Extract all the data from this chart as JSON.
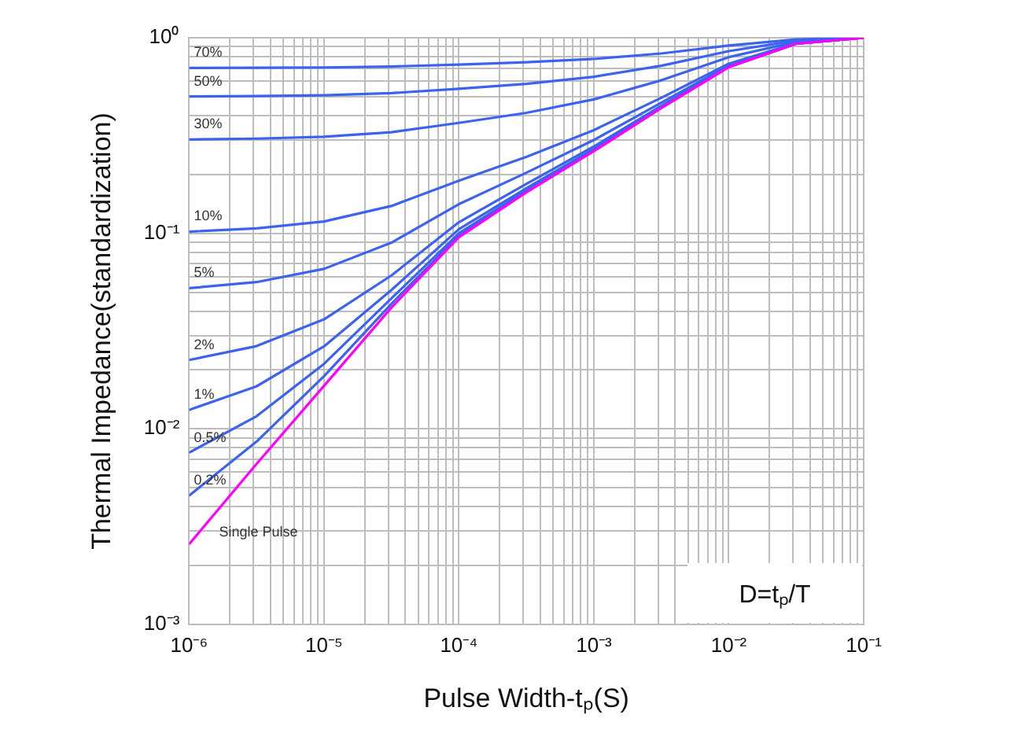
{
  "chart_data": {
    "type": "line",
    "xlabel": "Pulse Width-tₚ(S)",
    "ylabel": "Thermal Impedance(standardization)",
    "log": "xy",
    "grid": true,
    "legend": false,
    "marker": "none",
    "line_style": "solid",
    "x": [
      1e-06,
      3.16e-06,
      1e-05,
      3.16e-05,
      0.0001,
      0.000316,
      0.001,
      0.00316,
      0.01,
      0.0316,
      0.1
    ],
    "series": [
      {
        "name": "70%",
        "color": "#3b63f0",
        "values": [
          0.701,
          0.702,
          0.705,
          0.713,
          0.729,
          0.749,
          0.779,
          0.831,
          0.912,
          0.98,
          1
        ]
      },
      {
        "name": "50%",
        "color": "#3b63f0",
        "values": [
          0.501,
          0.503,
          0.508,
          0.521,
          0.548,
          0.581,
          0.632,
          0.719,
          0.854,
          0.967,
          1
        ]
      },
      {
        "name": "30%",
        "color": "#3b63f0",
        "values": [
          0.302,
          0.305,
          0.312,
          0.329,
          0.367,
          0.413,
          0.484,
          0.606,
          0.796,
          0.953,
          1
        ]
      },
      {
        "name": "10%",
        "color": "#3b63f0",
        "values": [
          0.102,
          0.106,
          0.115,
          0.138,
          0.186,
          0.246,
          0.337,
          0.493,
          0.737,
          0.94,
          1
        ]
      },
      {
        "name": "5%",
        "color": "#3b63f0",
        "values": [
          0.0524,
          0.0563,
          0.0658,
          0.0896,
          0.141,
          0.204,
          0.3,
          0.465,
          0.723,
          0.936,
          1
        ]
      },
      {
        "name": "2%",
        "color": "#3b63f0",
        "values": [
          0.0225,
          0.0265,
          0.0363,
          0.0609,
          0.114,
          0.179,
          0.278,
          0.448,
          0.714,
          0.934,
          1
        ]
      },
      {
        "name": "1%",
        "color": "#3b63f0",
        "values": [
          0.0125,
          0.0165,
          0.0264,
          0.0513,
          0.105,
          0.17,
          0.27,
          0.443,
          0.711,
          0.933,
          1
        ]
      },
      {
        "name": "0.5%",
        "color": "#3b63f0",
        "values": [
          0.00756,
          0.0116,
          0.0215,
          0.0465,
          0.1,
          0.166,
          0.267,
          0.44,
          0.709,
          0.933,
          1
        ]
      },
      {
        "name": "0.2%",
        "color": "#3b63f0",
        "values": [
          0.00456,
          0.0086,
          0.0186,
          0.0436,
          0.0973,
          0.164,
          0.264,
          0.438,
          0.709,
          0.933,
          1
        ]
      },
      {
        "name": "Single Pulse",
        "color": "#ff00ff",
        "values": [
          0.00257,
          0.00661,
          0.0166,
          0.0417,
          0.0955,
          0.162,
          0.263,
          0.437,
          0.708,
          0.933,
          1
        ]
      }
    ],
    "xlim": [
      1e-06,
      0.1
    ],
    "ylim": [
      0.001,
      1
    ],
    "xticks": [
      {
        "value": 1e-06,
        "label": "10⁻⁶"
      },
      {
        "value": 2e-06,
        "label": null
      },
      {
        "value": 3e-06,
        "label": null
      },
      {
        "value": 4e-06,
        "label": null
      },
      {
        "value": 5e-06,
        "label": null
      },
      {
        "value": 6e-06,
        "label": null
      },
      {
        "value": 7e-06,
        "label": null
      },
      {
        "value": 8e-06,
        "label": null
      },
      {
        "value": 9e-06,
        "label": null
      },
      {
        "value": 1e-05,
        "label": "10⁻⁵"
      },
      {
        "value": 2e-05,
        "label": null
      },
      {
        "value": 3e-05,
        "label": null
      },
      {
        "value": 4e-05,
        "label": null
      },
      {
        "value": 5e-05,
        "label": null
      },
      {
        "value": 6e-05,
        "label": null
      },
      {
        "value": 7e-05,
        "label": null
      },
      {
        "value": 8e-05,
        "label": null
      },
      {
        "value": 9e-05,
        "label": null
      },
      {
        "value": 0.0001,
        "label": "10⁻⁴"
      },
      {
        "value": 0.0002,
        "label": null
      },
      {
        "value": 0.0003,
        "label": null
      },
      {
        "value": 0.0004,
        "label": null
      },
      {
        "value": 0.0005,
        "label": null
      },
      {
        "value": 0.0006,
        "label": null
      },
      {
        "value": 0.0007,
        "label": null
      },
      {
        "value": 0.0008,
        "label": null
      },
      {
        "value": 0.0009,
        "label": null
      },
      {
        "value": 0.001,
        "label": "10⁻³"
      },
      {
        "value": 0.002,
        "label": null
      },
      {
        "value": 0.003,
        "label": null
      },
      {
        "value": 0.004,
        "label": null
      },
      {
        "value": 0.005,
        "label": null
      },
      {
        "value": 0.006,
        "label": null
      },
      {
        "value": 0.007,
        "label": null
      },
      {
        "value": 0.008,
        "label": null
      },
      {
        "value": 0.009,
        "label": null
      },
      {
        "value": 0.01,
        "label": "10⁻²"
      },
      {
        "value": 0.02,
        "label": null
      },
      {
        "value": 0.03,
        "label": null
      },
      {
        "value": 0.04,
        "label": null
      },
      {
        "value": 0.05,
        "label": null
      },
      {
        "value": 0.06,
        "label": null
      },
      {
        "value": 0.07,
        "label": null
      },
      {
        "value": 0.08,
        "label": null
      },
      {
        "value": 0.09,
        "label": null
      },
      {
        "value": 0.1,
        "label": "10⁻¹"
      }
    ],
    "yticks": [
      {
        "value": 0.001,
        "label": "10⁻³"
      },
      {
        "value": 0.002,
        "label": null
      },
      {
        "value": 0.003,
        "label": null
      },
      {
        "value": 0.004,
        "label": null
      },
      {
        "value": 0.005,
        "label": null
      },
      {
        "value": 0.006,
        "label": null
      },
      {
        "value": 0.007,
        "label": null
      },
      {
        "value": 0.008,
        "label": null
      },
      {
        "value": 0.009,
        "label": null
      },
      {
        "value": 0.01,
        "label": "10⁻²"
      },
      {
        "value": 0.02,
        "label": null
      },
      {
        "value": 0.03,
        "label": null
      },
      {
        "value": 0.04,
        "label": null
      },
      {
        "value": 0.05,
        "label": null
      },
      {
        "value": 0.06,
        "label": null
      },
      {
        "value": 0.07,
        "label": null
      },
      {
        "value": 0.08,
        "label": null
      },
      {
        "value": 0.09,
        "label": null
      },
      {
        "value": 0.1,
        "label": "10⁻¹"
      },
      {
        "value": 0.2,
        "label": null
      },
      {
        "value": 0.3,
        "label": null
      },
      {
        "value": 0.4,
        "label": null
      },
      {
        "value": 0.5,
        "label": null
      },
      {
        "value": 0.6,
        "label": null
      },
      {
        "value": 0.7,
        "label": null
      },
      {
        "value": 0.8,
        "label": null
      },
      {
        "value": 0.9,
        "label": null
      },
      {
        "value": 1,
        "label": "10⁰"
      }
    ],
    "annotations": [
      "D=tₚ/T"
    ]
  }
}
